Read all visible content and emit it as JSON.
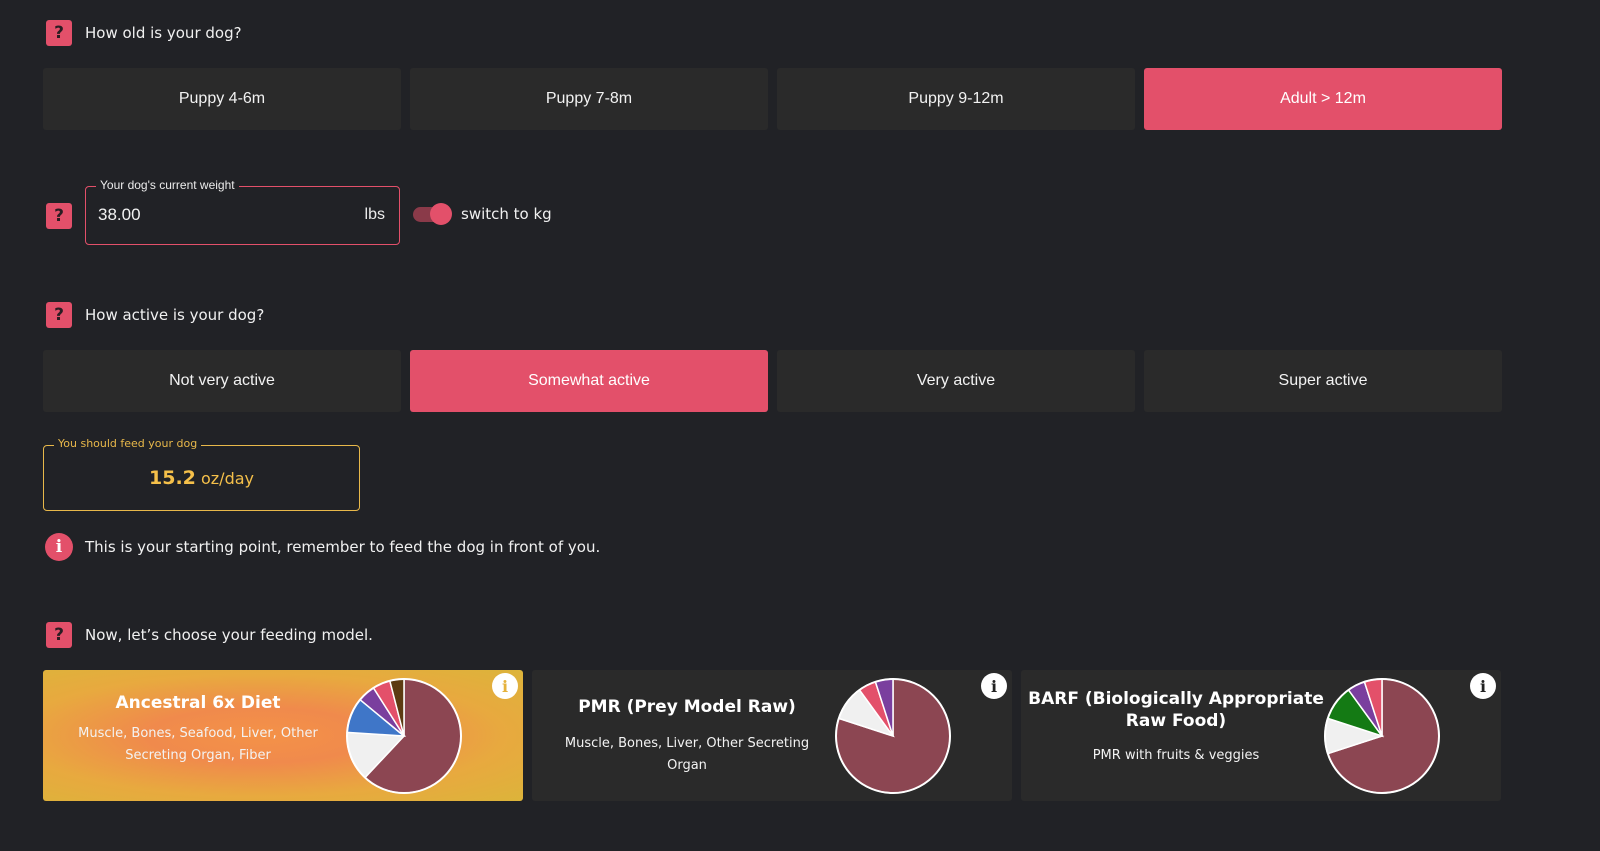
{
  "age": {
    "question": "How old is your dog?",
    "options": [
      "Puppy 4-6m",
      "Puppy 7-8m",
      "Puppy 9-12m",
      "Adult > 12m"
    ],
    "selected": "Adult > 12m"
  },
  "weight": {
    "legend": "Your dog's current weight",
    "value": "38.00",
    "unit": "lbs",
    "toggle_label": "switch to kg",
    "toggle_on": true
  },
  "activity": {
    "question": "How active is your dog?",
    "options": [
      "Not very active",
      "Somewhat active",
      "Very active",
      "Super active"
    ],
    "selected": "Somewhat active"
  },
  "feed": {
    "legend": "You should feed your dog",
    "amount": "15.2",
    "unit": "oz/day"
  },
  "note": {
    "text": "This is your starting point, remember to feed the dog in front of you."
  },
  "model": {
    "question": "Now, let’s choose your feeding model.",
    "cards": [
      {
        "title": "Ancestral 6x Diet",
        "subtitle": "Muscle, Bones, Seafood, Liver, Other Secreting Organ, Fiber",
        "selected": true
      },
      {
        "title": "PMR (Prey Model Raw)",
        "subtitle": "Muscle, Bones, Liver, Other Secreting Organ",
        "selected": false
      },
      {
        "title": "BARF (Biologically Appropriate Raw Food)",
        "subtitle": "PMR with fruits & veggies",
        "selected": false
      }
    ]
  },
  "colors": {
    "accent": "#e3506a",
    "background": "#212226",
    "option_bg": "#2a2a2a",
    "feed_yellow": "#e8b84a",
    "muscle": "#8c4652",
    "bones": "#f0f0f0",
    "seafood": "#3f76c8",
    "liver": "#e3506a",
    "organ": "#7a3f9e",
    "fiber": "#5c3b12",
    "veggies": "#147a14"
  },
  "icons": {
    "question": "?",
    "info": "i"
  },
  "chart_data": [
    {
      "type": "pie",
      "card": "Ancestral 6x Diet",
      "slices": [
        {
          "label": "Muscle",
          "value": 62,
          "color": "#8c4652"
        },
        {
          "label": "Bones",
          "value": 14,
          "color": "#f0f0f0"
        },
        {
          "label": "Seafood",
          "value": 10,
          "color": "#3f76c8"
        },
        {
          "label": "Other Secreting Organ",
          "value": 5,
          "color": "#7a3f9e"
        },
        {
          "label": "Liver",
          "value": 5,
          "color": "#e3506a"
        },
        {
          "label": "Fiber",
          "value": 4,
          "color": "#5c3b12"
        }
      ]
    },
    {
      "type": "pie",
      "card": "PMR (Prey Model Raw)",
      "slices": [
        {
          "label": "Muscle",
          "value": 80,
          "color": "#8c4652"
        },
        {
          "label": "Bones",
          "value": 10,
          "color": "#f0f0f0"
        },
        {
          "label": "Liver",
          "value": 5,
          "color": "#e3506a"
        },
        {
          "label": "Other Secreting Organ",
          "value": 5,
          "color": "#7a3f9e"
        }
      ]
    },
    {
      "type": "pie",
      "card": "BARF (Biologically Appropriate Raw Food)",
      "slices": [
        {
          "label": "Muscle",
          "value": 70,
          "color": "#8c4652"
        },
        {
          "label": "Bones",
          "value": 10,
          "color": "#f0f0f0"
        },
        {
          "label": "Fruits & veggies",
          "value": 10,
          "color": "#147a14"
        },
        {
          "label": "Other Secreting Organ",
          "value": 5,
          "color": "#7a3f9e"
        },
        {
          "label": "Liver",
          "value": 5,
          "color": "#e3506a"
        }
      ]
    }
  ]
}
